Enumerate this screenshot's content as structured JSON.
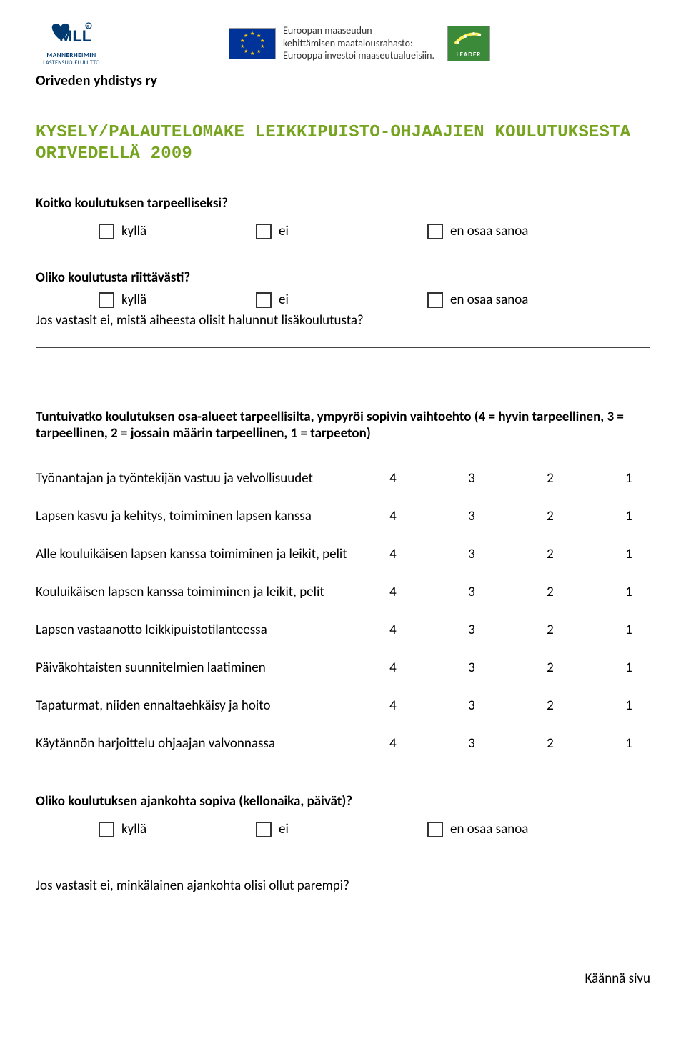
{
  "colors": {
    "title": "#76a41e",
    "mll": "#003a70",
    "eu_blue": "#003399",
    "eu_gold": "#ffcc00",
    "leader_green": "#3a8a3a",
    "text": "#000000",
    "line": "#444444"
  },
  "logos": {
    "mll_line1": "MANNERHEIMIN",
    "mll_line2": "LASTENSUOJELULIITTO",
    "eu_line1": "Euroopan maaseudun",
    "eu_line2": "kehittämisen maatalousrahasto:",
    "eu_line3": "Eurooppa investoi maaseutualueisiin.",
    "leader": "LEADER"
  },
  "org": "Oriveden yhdistys ry",
  "title_l1": "KYSELY/PALAUTELOMAKE LEIKKIPUISTO-OHJAAJIEN KOULUTUKSESTA",
  "title_l2": "ORIVEDELLÄ 2009",
  "opts": {
    "yes": "kyllä",
    "no": "ei",
    "dunno": "en osaa sanoa"
  },
  "q1": "Koitko koulutuksen tarpeelliseksi?",
  "q2": "Oliko koulutusta riittävästi?",
  "q2_follow": "Jos vastasit ei, mistä aiheesta olisit halunnut lisäkoulutusta?",
  "q3": "Tuntuivatko koulutuksen osa-alueet tarpeellisilta, ympyröi sopivin vaihtoehto (4 = hyvin tarpeellinen, 3 = tarpeellinen, 2 = jossain määrin tarpeellinen, 1 = tarpeeton)",
  "matrix": {
    "scale": [
      "4",
      "3",
      "2",
      "1"
    ],
    "rows": [
      "Työnantajan ja työntekijän vastuu ja velvollisuudet",
      "Lapsen kasvu ja kehitys, toimiminen lapsen kanssa",
      "Alle kouluikäisen lapsen kanssa toimiminen ja leikit, pelit",
      "Kouluikäisen lapsen kanssa toimiminen ja leikit, pelit",
      "Lapsen vastaanotto leikkipuistotilanteessa",
      "Päiväkohtaisten suunnitelmien laatiminen",
      "Tapaturmat, niiden ennaltaehkäisy ja hoito",
      "Käytännön harjoittelu ohjaajan valvonnassa"
    ]
  },
  "q4": "Oliko koulutuksen ajankohta sopiva (kellonaika, päivät)?",
  "q5": "Jos vastasit ei, minkälainen ajankohta olisi ollut parempi?",
  "footer_right": "Käännä sivu"
}
